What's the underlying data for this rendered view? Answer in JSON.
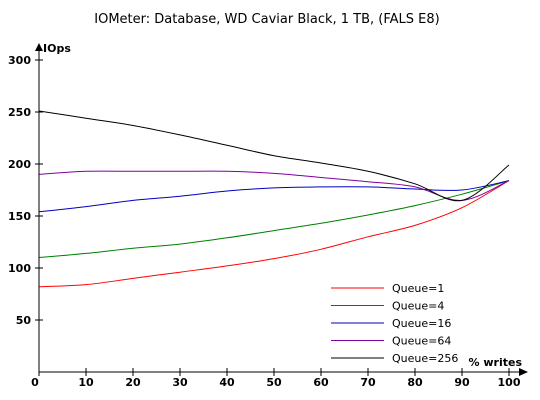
{
  "chart_data": {
    "type": "line",
    "title": "IOMeter: Database, WD Caviar Black, 1 TB, (FALS E8)",
    "xlabel": "% writes",
    "ylabel": "IOps",
    "xlim": [
      0,
      100
    ],
    "ylim": [
      0,
      300
    ],
    "x_ticks": [
      "0",
      "10",
      "20",
      "30",
      "40",
      "50",
      "60",
      "70",
      "80",
      "90",
      "100"
    ],
    "y_ticks": [
      "50",
      "100",
      "150",
      "200",
      "250",
      "300"
    ],
    "grid": false,
    "legend_position": "bottom-right",
    "x": [
      0,
      10,
      20,
      30,
      40,
      50,
      60,
      70,
      80,
      90,
      100
    ],
    "series": [
      {
        "name": "Queue=1",
        "color": "#ff0000",
        "values": [
          82,
          84,
          90,
          96,
          102,
          109,
          118,
          130,
          141,
          158,
          184
        ]
      },
      {
        "name": "Queue=4",
        "color": "#008000",
        "values": [
          110,
          114,
          119,
          123,
          129,
          136,
          143,
          151,
          160,
          171,
          184
        ]
      },
      {
        "name": "Queue=16",
        "color": "#0000c0",
        "values": [
          154,
          159,
          165,
          169,
          174,
          177,
          178,
          178,
          176,
          175,
          184
        ]
      },
      {
        "name": "Queue=64",
        "color": "#8000a0",
        "values": [
          190,
          193,
          193,
          193,
          193,
          191,
          187,
          183,
          178,
          165,
          184
        ]
      },
      {
        "name": "Queue=256",
        "color": "#000000",
        "values": [
          251,
          244,
          237,
          228,
          218,
          208,
          201,
          193,
          181,
          165,
          199
        ]
      }
    ]
  }
}
